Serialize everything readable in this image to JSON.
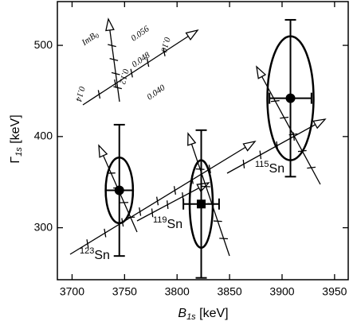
{
  "chart_data": {
    "type": "scatter",
    "color": "#000000",
    "x_label": {
      "symbol": "B",
      "sub": "1s",
      "unit": " [keV]"
    },
    "y_label": {
      "symbol": "Γ",
      "sub": "1s",
      "unit": " [keV]"
    },
    "xlim": [
      3686,
      3963
    ],
    "ylim": [
      243,
      548
    ],
    "xticks": [
      3700,
      3750,
      3800,
      3850,
      3900,
      3950
    ],
    "yticks": [
      300,
      400,
      500
    ],
    "points": [
      {
        "mass": "123",
        "element": "Sn",
        "x": 3745,
        "y": 341,
        "xerr": 13,
        "yerr": 72,
        "ellipse_x": 13,
        "ellipse_y": 36,
        "marker": "circle"
      },
      {
        "mass": "119",
        "element": "Sn",
        "x": 3823,
        "y": 326,
        "xerr": 17,
        "yerr": 81,
        "ellipse_x": 11,
        "ellipse_y": 48,
        "marker": "square"
      },
      {
        "mass": "115",
        "element": "Sn",
        "x": 3908,
        "y": 442,
        "xerr": 20,
        "yerr": 86,
        "ellipse_x": 22,
        "ellipse_y": 68,
        "marker": "circle"
      }
    ],
    "annotations": {
      "legend_symbol": "ImB",
      "legend_sub": "0",
      "contours": [
        "0.056",
        "0.048",
        "0.040"
      ],
      "rotated": [
        "0.14",
        "0.12",
        "0.10"
      ]
    }
  }
}
